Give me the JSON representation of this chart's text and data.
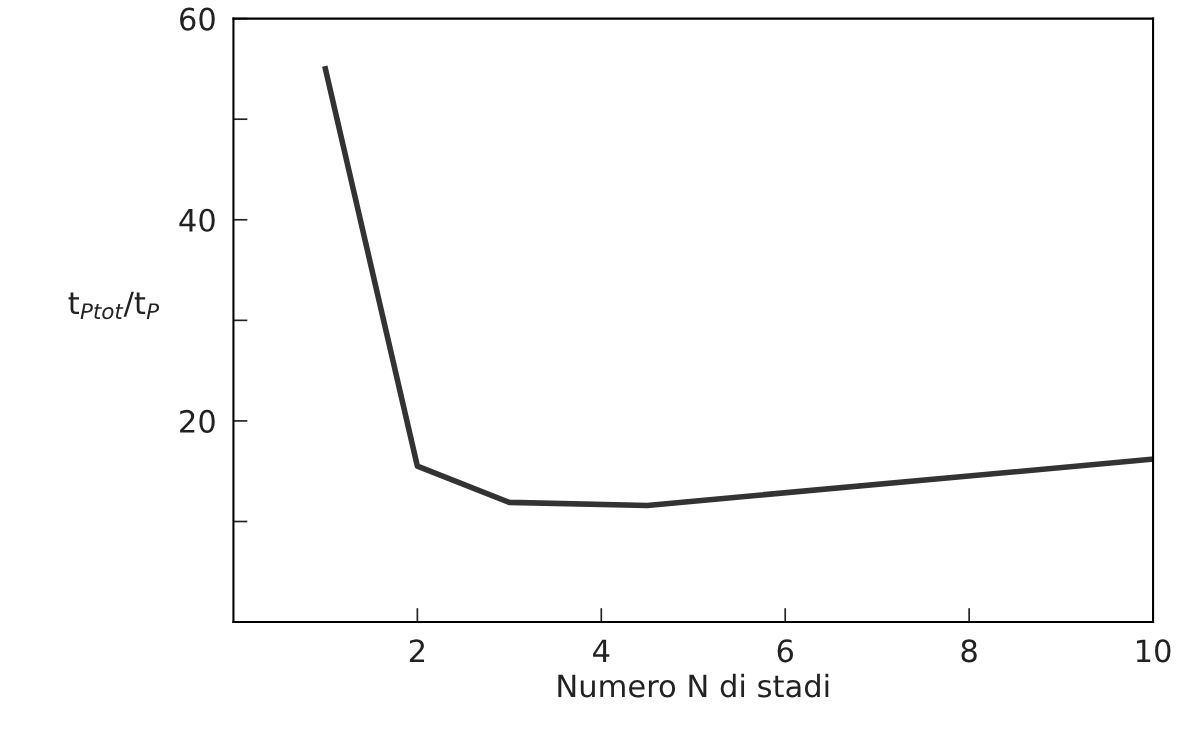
{
  "chart_data": {
    "type": "line",
    "xlabel": "Numero N di stadi",
    "ylabel": "t$_{Ptot}$/t$_{P}$",
    "x": [
      1,
      2,
      3,
      4.5,
      10
    ],
    "series": [
      {
        "color": "#333333",
        "values": [
          55,
          15.5,
          11.9,
          11.6,
          16.2
        ]
      }
    ],
    "xlim": [
      0,
      10
    ],
    "ylim": [
      0,
      60
    ],
    "xticks": [
      2,
      4,
      6,
      8,
      10
    ],
    "yticks": [
      {
        "value": 10,
        "label": null
      },
      20,
      {
        "value": 30,
        "label": null
      },
      40,
      {
        "value": 50,
        "label": null
      },
      60
    ],
    "marker": "none",
    "line_style": "solid"
  }
}
